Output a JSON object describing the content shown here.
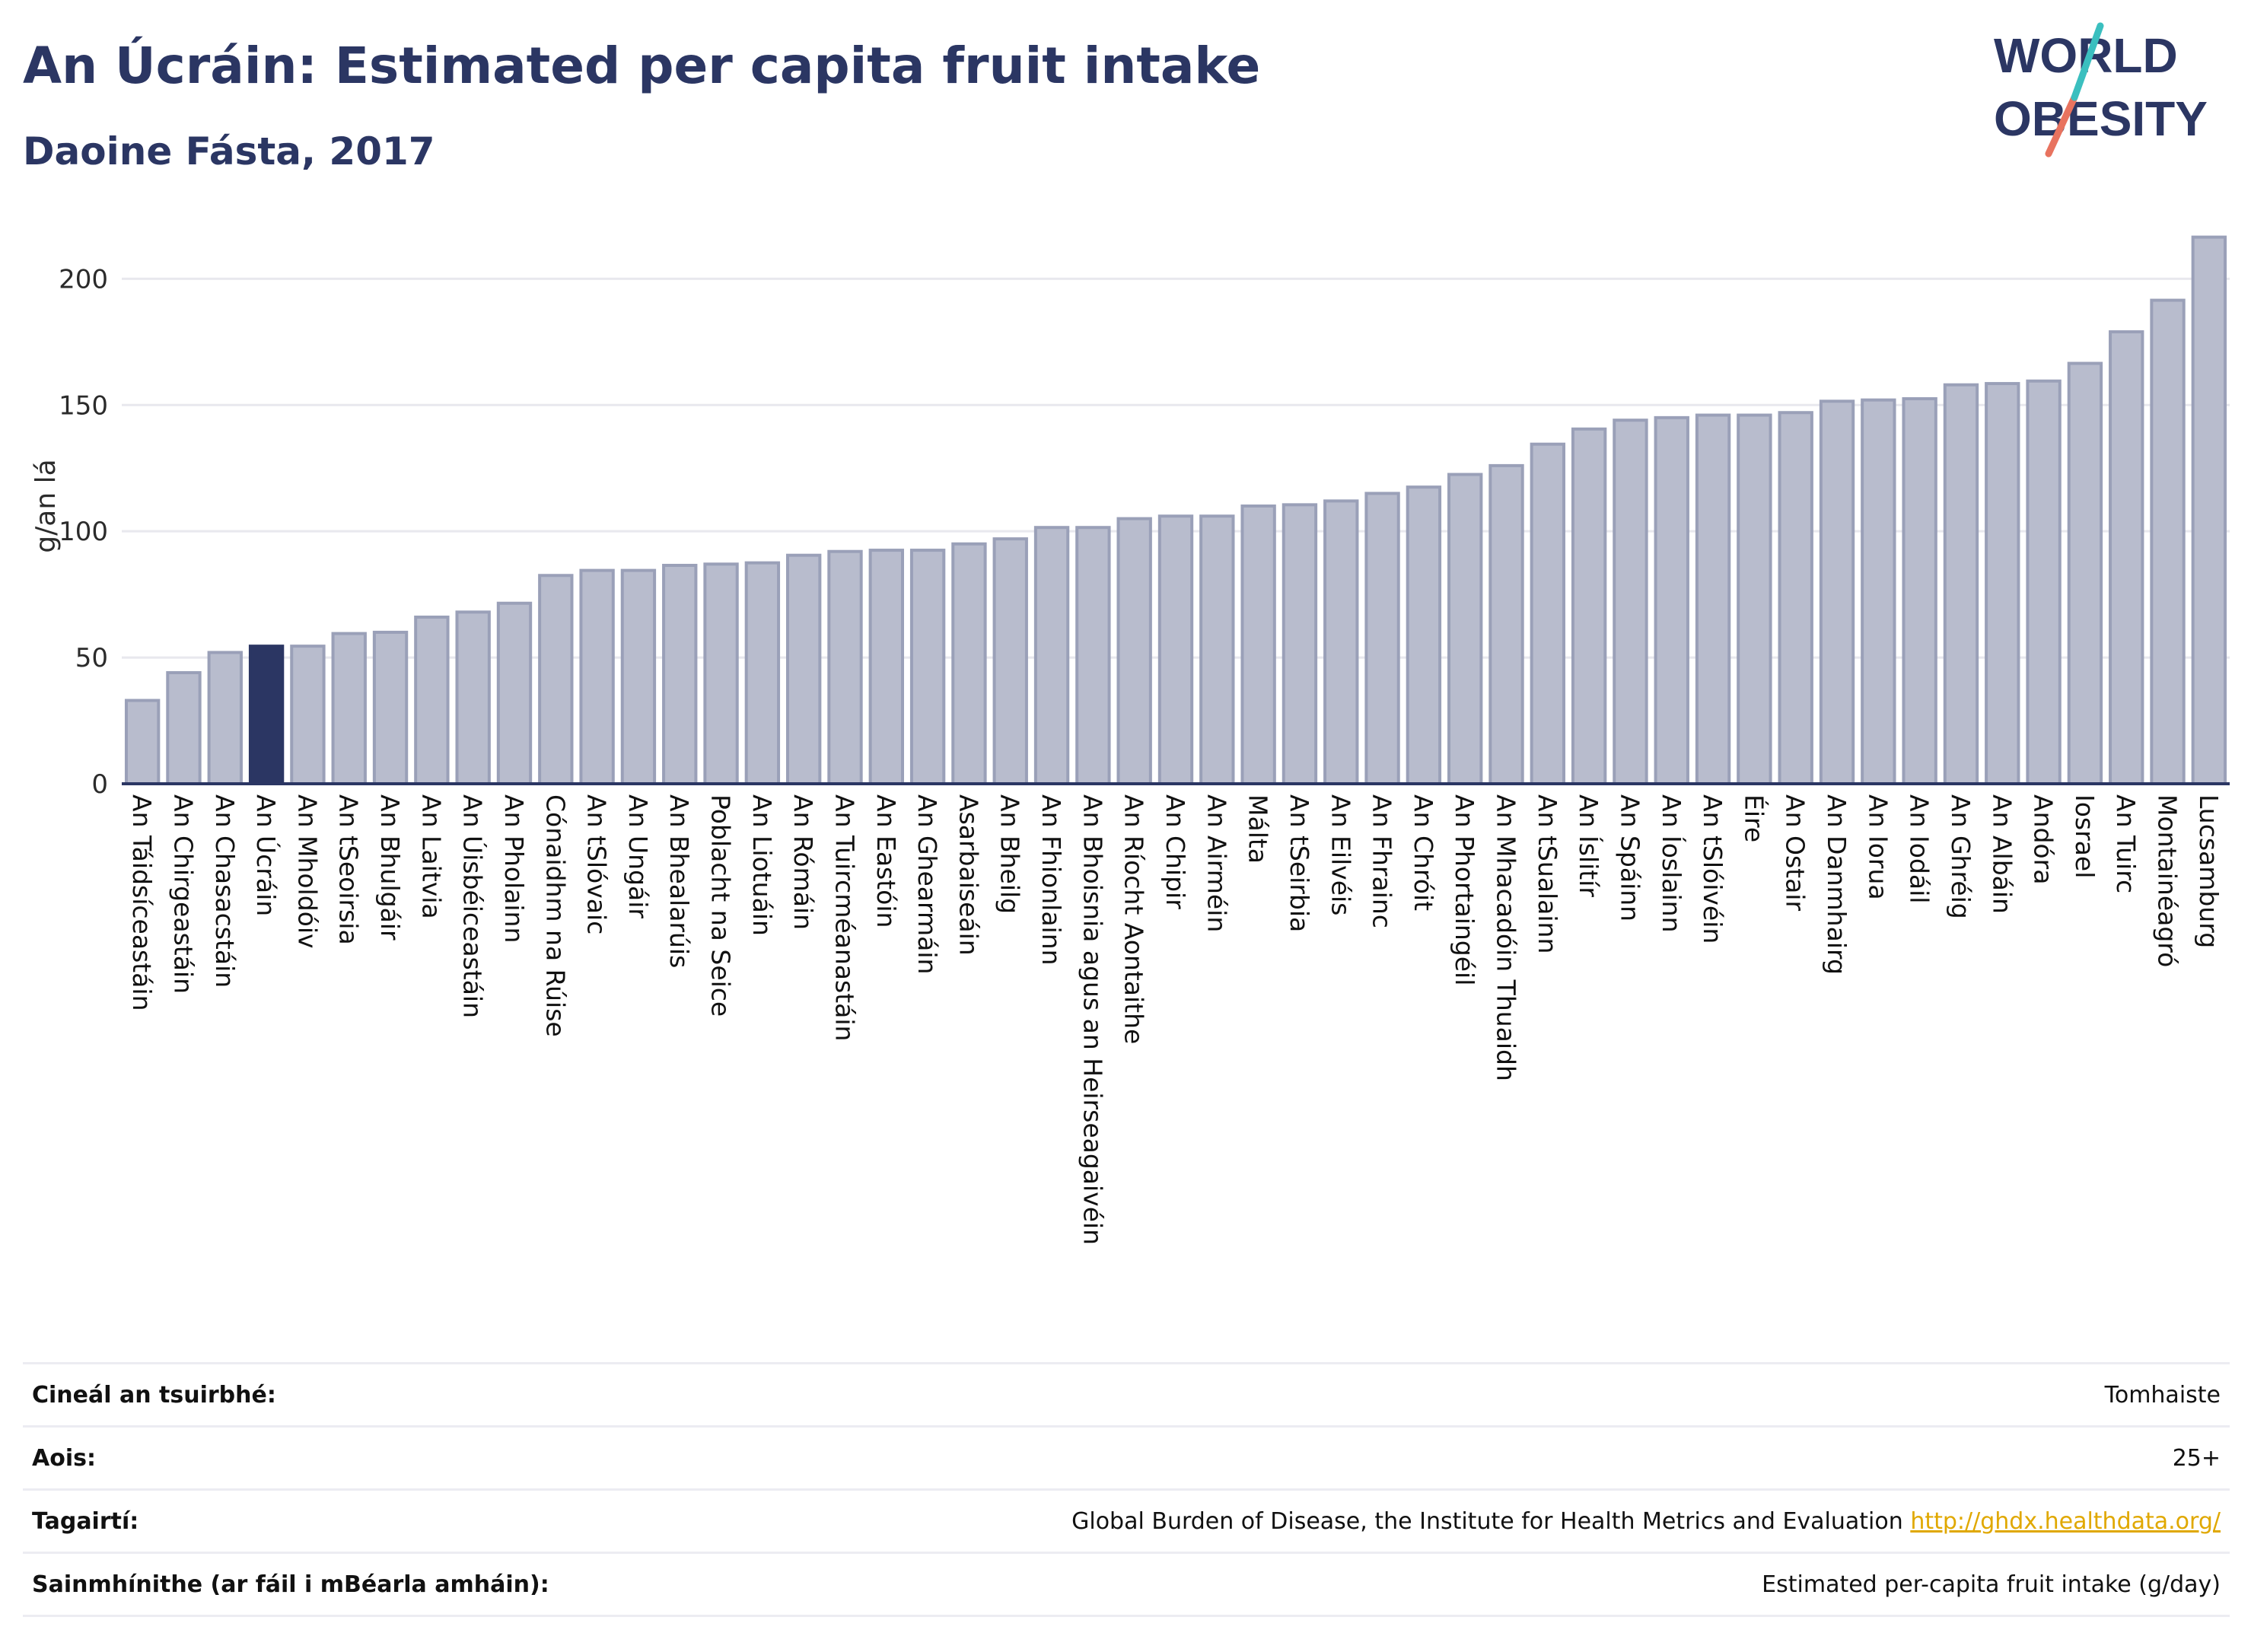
{
  "title": "An Úcráin: Estimated per capita fruit intake",
  "subtitle": "Daoine Fásta, 2017",
  "logo": {
    "line1": "WORLD",
    "line2": "OBESITY"
  },
  "colors": {
    "bar": "#b8bccd",
    "bar_border": "#9aa0b8",
    "highlight": "#2b3663",
    "grid": "#e8e8ee",
    "axis": "#2b3663",
    "logo_teal": "#3bbfbf",
    "logo_coral": "#e8735f"
  },
  "chart_data": {
    "type": "bar",
    "ylabel": "g/an lá",
    "ylim": [
      0,
      220
    ],
    "yticks": [
      0,
      50,
      100,
      150,
      200
    ],
    "grid": true,
    "highlight": "An Úcráin",
    "categories": [
      "An Táidsíceastáin",
      "An Chirgeastáin",
      "An Chasacstáin",
      "An Úcráin",
      "An Mholdóiv",
      "An tSeoirsia",
      "An Bhulgáir",
      "An Laitvia",
      "An Úisbéiceastáin",
      "An Pholainn",
      "Cónaidhm na Rúise",
      "An tSlóvaic",
      "An Ungáir",
      "An Bhealarúis",
      "Poblacht na Seice",
      "An Liotuáin",
      "An Rómáin",
      "An Tuircméanastáin",
      "An Eastóin",
      "An Ghearmáin",
      "Asarbaiseáin",
      "An Bheilg",
      "An Fhionlainn",
      "An Bhoisnia agus an Heirseagaivéin",
      "An Ríocht Aontaithe",
      "An Chipir",
      "An Airméin",
      "Málta",
      "An tSeirbia",
      "An Eilvéis",
      "An Fhrainc",
      "An Chróit",
      "An Phortaingéil",
      "An Mhacadóin Thuaidh",
      "An tSualainn",
      "An Íslitír",
      "An Spáinn",
      "An Íoslainn",
      "An tSlóivéin",
      "Éire",
      "An Ostair",
      "An Danmhairg",
      "An Iorua",
      "An Iodáil",
      "An Ghréig",
      "An Albáin",
      "Andóra",
      "Iosrael",
      "An Tuirc",
      "Montainéagró",
      "Lucsamburg"
    ],
    "values": [
      33,
      44,
      52,
      54.5,
      54.5,
      59.5,
      60,
      66,
      68,
      71.5,
      82.5,
      84.5,
      84.5,
      86.5,
      87,
      87.5,
      90.5,
      92,
      92.5,
      92.5,
      95,
      97,
      101.5,
      101.5,
      105,
      106,
      106,
      110,
      110.5,
      112,
      115,
      117.5,
      122.5,
      126,
      134.5,
      140.5,
      144,
      145,
      146,
      146,
      147,
      151.5,
      152,
      152.5,
      158,
      158.5,
      159.5,
      166.5,
      179,
      191.5,
      216.5
    ]
  },
  "info": [
    {
      "key": "Cineál an tsuirbhé:",
      "value": "Tomhaiste"
    },
    {
      "key": "Aois:",
      "value": "25+"
    },
    {
      "key": "Tagairtí:",
      "value": "Global Burden of Disease, the Institute for Health Metrics and Evaluation",
      "link": "http://ghdx.healthdata.org/"
    },
    {
      "key": "Sainmhínithe (ar fáil i mBéarla amháin):",
      "value": "Estimated per-capita fruit intake (g/day)"
    }
  ]
}
